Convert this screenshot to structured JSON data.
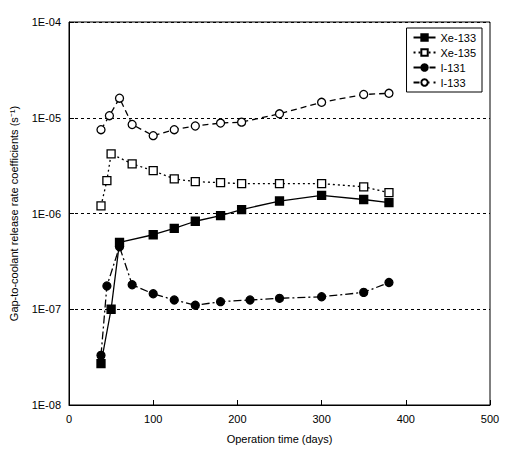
{
  "chart_data": {
    "type": "line",
    "x_label": "Operation time (days)",
    "y_label": "Gap-to-coolant release rate coefficients (s⁻¹)",
    "xlim": [
      0,
      500
    ],
    "xticks": [
      0,
      100,
      200,
      300,
      400,
      500
    ],
    "ylim": [
      1e-08,
      0.0001
    ],
    "yticks": [
      {
        "value": 1e-08,
        "label": "1E-08"
      },
      {
        "value": 1e-07,
        "label": "1E-07"
      },
      {
        "value": 1e-06,
        "label": "1E-06"
      },
      {
        "value": 1e-05,
        "label": "1E-05"
      },
      {
        "value": 0.0001,
        "label": "1E-04"
      }
    ],
    "log": "y",
    "grid": true,
    "legend": "upper right",
    "series": [
      {
        "name": "Xe-133",
        "color": "#000000",
        "marker": "square",
        "line_style": "solid",
        "x": [
          38,
          50,
          60,
          100,
          125,
          150,
          180,
          205,
          250,
          300,
          350,
          380
        ],
        "values": [
          2.7e-08,
          1e-07,
          5e-07,
          6e-07,
          7e-07,
          8.3e-07,
          9.5e-07,
          1.1e-06,
          1.35e-06,
          1.55e-06,
          1.4e-06,
          1.3e-06
        ]
      },
      {
        "name": "Xe-135",
        "color": "#000000",
        "marker": "square-open",
        "line_style": "dotted",
        "x": [
          38,
          45,
          50,
          75,
          100,
          125,
          150,
          180,
          205,
          250,
          300,
          350,
          380
        ],
        "values": [
          1.2e-06,
          2.2e-06,
          4.2e-06,
          3.3e-06,
          2.8e-06,
          2.3e-06,
          2.15e-06,
          2.1e-06,
          2.05e-06,
          2.05e-06,
          2.05e-06,
          1.9e-06,
          1.65e-06
        ]
      },
      {
        "name": "I-131",
        "color": "#000000",
        "marker": "circle",
        "line_style": "dashdot",
        "x": [
          38,
          45,
          60,
          75,
          100,
          125,
          150,
          180,
          215,
          250,
          300,
          350,
          380
        ],
        "values": [
          3.3e-08,
          1.75e-07,
          4.5e-07,
          1.8e-07,
          1.45e-07,
          1.25e-07,
          1.1e-07,
          1.2e-07,
          1.25e-07,
          1.3e-07,
          1.35e-07,
          1.5e-07,
          1.9e-07
        ]
      },
      {
        "name": "I-133",
        "color": "#000000",
        "marker": "circle-open",
        "line_style": "dashed",
        "x": [
          38,
          48,
          60,
          75,
          100,
          125,
          150,
          180,
          205,
          250,
          300,
          350,
          380
        ],
        "values": [
          7.5e-06,
          1.05e-05,
          1.6e-05,
          8.5e-06,
          6.5e-06,
          7.5e-06,
          8.2e-06,
          8.8e-06,
          9e-06,
          1.1e-05,
          1.45e-05,
          1.75e-05,
          1.8e-05
        ]
      }
    ]
  }
}
